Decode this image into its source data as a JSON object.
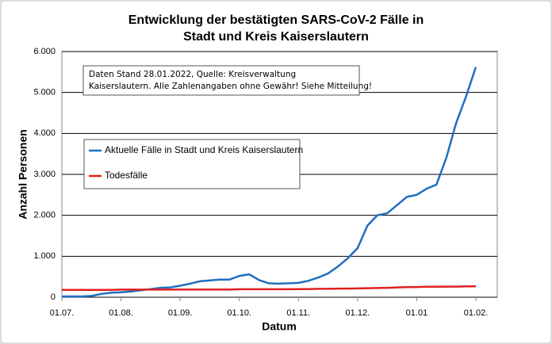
{
  "chart_data": {
    "type": "line",
    "title": [
      "Entwicklung der bestätigten SARS-CoV-2 Fälle in",
      "Stadt und Kreis Kaiserslautern"
    ],
    "annotation": [
      "Daten Stand 28.01.2022, Quelle: Kreisverwaltung",
      "Kaiserslautern. Alle Zahlenangaben ohne Gewähr! Siehe Mitteilung!"
    ],
    "x_label": "Datum",
    "y_label": "Anzahl Personen",
    "categories": [
      "01.07.",
      null,
      null,
      null,
      null,
      null,
      "01.08.",
      null,
      null,
      null,
      null,
      null,
      "01.09.",
      null,
      null,
      null,
      null,
      null,
      "01.10.",
      null,
      null,
      null,
      null,
      null,
      "01.11.",
      null,
      null,
      null,
      null,
      null,
      "01.12.",
      null,
      null,
      null,
      null,
      null,
      "01.01",
      null,
      null,
      null,
      null,
      null,
      "01.02."
    ],
    "series": [
      {
        "name": "Aktuelle Fälle in Stadt und Kreis Kaiserslautern",
        "color": "#1f6fc0",
        "values": [
          20,
          20,
          20,
          30,
          80,
          110,
          120,
          140,
          170,
          200,
          230,
          240,
          280,
          330,
          390,
          410,
          430,
          430,
          520,
          560,
          420,
          340,
          330,
          340,
          350,
          400,
          480,
          580,
          750,
          950,
          1200,
          1750,
          2000,
          2050,
          2250,
          2450,
          2500,
          2650,
          2750,
          3400,
          4250,
          4900,
          5620
        ]
      },
      {
        "name": "Todesfälle",
        "color": "#e02020",
        "values": [
          180,
          180,
          180,
          180,
          180,
          180,
          185,
          185,
          185,
          185,
          185,
          185,
          190,
          190,
          190,
          190,
          190,
          190,
          195,
          195,
          195,
          195,
          195,
          195,
          200,
          200,
          205,
          205,
          210,
          210,
          215,
          220,
          225,
          230,
          240,
          245,
          250,
          255,
          255,
          260,
          260,
          265,
          265
        ]
      }
    ],
    "ylim": [
      0,
      6000
    ],
    "yticks": [
      0,
      {
        "value": 1000,
        "label": "1.000"
      },
      {
        "value": 2000,
        "label": "2.000"
      },
      {
        "value": 3000,
        "label": "3.000"
      },
      {
        "value": 4000,
        "label": "4.000"
      },
      {
        "value": 5000,
        "label": "5.000"
      },
      {
        "value": 6000,
        "label": "6.000"
      }
    ],
    "grid": true
  }
}
